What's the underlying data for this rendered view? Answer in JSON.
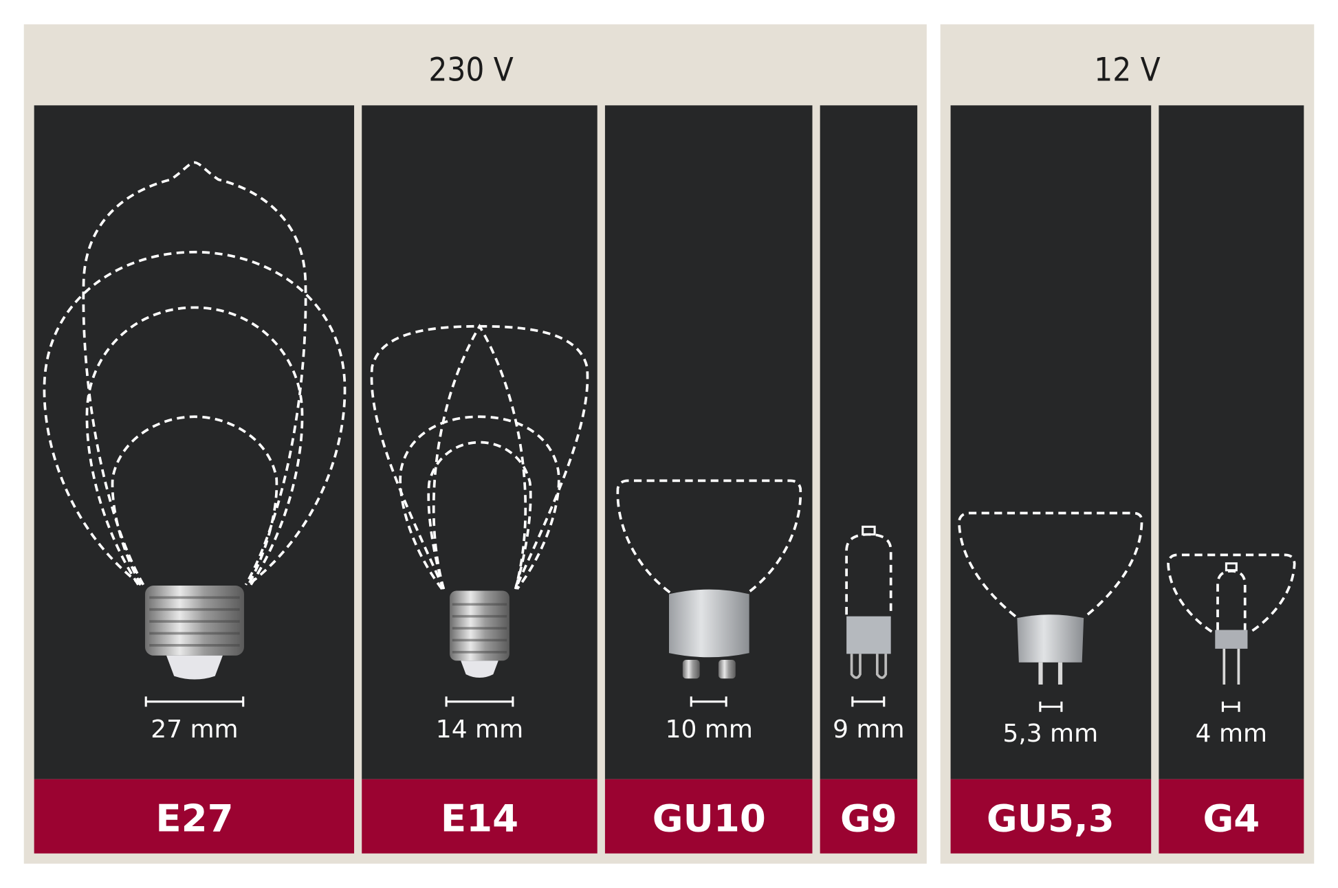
{
  "groups": [
    {
      "voltage": "230 V",
      "sockets": [
        {
          "label": "E27",
          "size": "27 mm"
        },
        {
          "label": "E14",
          "size": "14 mm"
        },
        {
          "label": "GU10",
          "size": "10 mm"
        },
        {
          "label": "G9",
          "size": "9 mm"
        }
      ]
    },
    {
      "voltage": "12 V",
      "sockets": [
        {
          "label": "GU5,3",
          "size": "5,3 mm"
        },
        {
          "label": "G4",
          "size": "4 mm"
        }
      ]
    }
  ],
  "colors": {
    "background": "#e5e0d6",
    "panel": "#262728",
    "label_bar": "#9b0331",
    "text_light": "#ffffff"
  }
}
